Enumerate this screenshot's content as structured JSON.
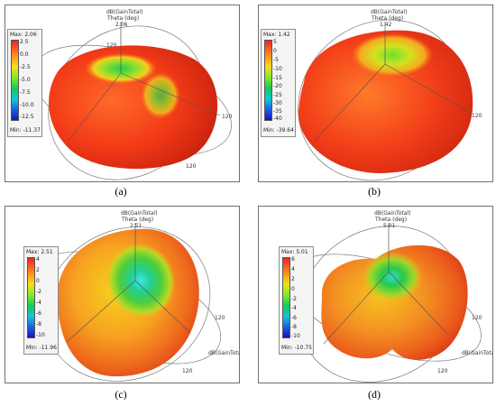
{
  "figure": {
    "panels": [
      {
        "caption": "(a)",
        "max_label": "Max: 2.06",
        "min_label": "Min: -11.37",
        "ticks": [
          "2.5",
          "0.0",
          "-2.5",
          "-5.0",
          "-7.5",
          "-10.0",
          "-12.5"
        ],
        "axis_quantity": "dB(GainTotal)",
        "axis_theta": "Theta (deg)",
        "peak_value": "2.06",
        "angle_label": "120"
      },
      {
        "caption": "(b)",
        "max_label": "Max: 1.42",
        "min_label": "Min: -39.64",
        "ticks": [
          "5",
          "0",
          "-5",
          "-10",
          "-15",
          "-20",
          "-25",
          "-30",
          "-35",
          "-40"
        ],
        "axis_quantity": "dB(GainTotal)",
        "axis_theta": "Theta (deg)",
        "peak_value": "1.42",
        "angle_label": "120"
      },
      {
        "caption": "(c)",
        "max_label": "Max: 2.51",
        "min_label": "Min: -11.96",
        "ticks": [
          "4",
          "2",
          "0",
          "-2",
          "-4",
          "-6",
          "-8",
          "-10"
        ],
        "axis_quantity": "dB(GainTotal)",
        "axis_theta": "Theta (deg)",
        "peak_value": "2.51",
        "angle_label": "120"
      },
      {
        "caption": "(d)",
        "max_label": "Max: 5.01",
        "min_label": "Min: -10.75",
        "ticks": [
          "6",
          "4",
          "2",
          "0",
          "-2",
          "-4",
          "-6",
          "-8",
          "-10"
        ],
        "axis_quantity": "dB(GainTotal)",
        "axis_theta": "Theta (deg)",
        "peak_value": "5.01",
        "angle_label": "120"
      }
    ]
  }
}
